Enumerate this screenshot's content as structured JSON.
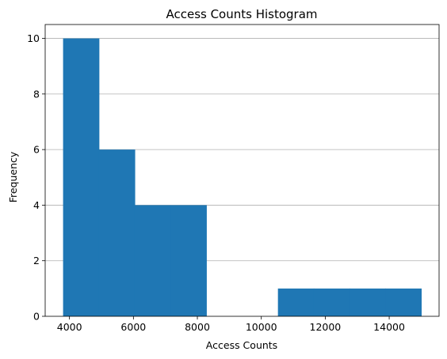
{
  "chart_data": {
    "type": "histogram",
    "title": "Access Counts Histogram",
    "xlabel": "Access Counts",
    "ylabel": "Frequency",
    "bin_edges": [
      3800,
      4920,
      6040,
      7160,
      8280,
      9400,
      10520,
      11640,
      12760,
      13880,
      15000
    ],
    "values": [
      10,
      6,
      4,
      4,
      0,
      0,
      1,
      1,
      1,
      1
    ],
    "xlim": [
      3240,
      15560
    ],
    "ylim": [
      0,
      10.5
    ],
    "xticks": [
      4000,
      6000,
      8000,
      10000,
      12000,
      14000
    ],
    "xtick_labels": [
      "4000",
      "6000",
      "8000",
      "10000",
      "12000",
      "14000"
    ],
    "yticks": [
      0,
      2,
      4,
      6,
      8,
      10
    ],
    "ytick_labels": [
      "0",
      "2",
      "4",
      "6",
      "8",
      "10"
    ],
    "grid": "y-axis only",
    "colors": {
      "bar": "#1f77b4",
      "grid": "#b0b0b0",
      "axis": "#000000"
    }
  }
}
